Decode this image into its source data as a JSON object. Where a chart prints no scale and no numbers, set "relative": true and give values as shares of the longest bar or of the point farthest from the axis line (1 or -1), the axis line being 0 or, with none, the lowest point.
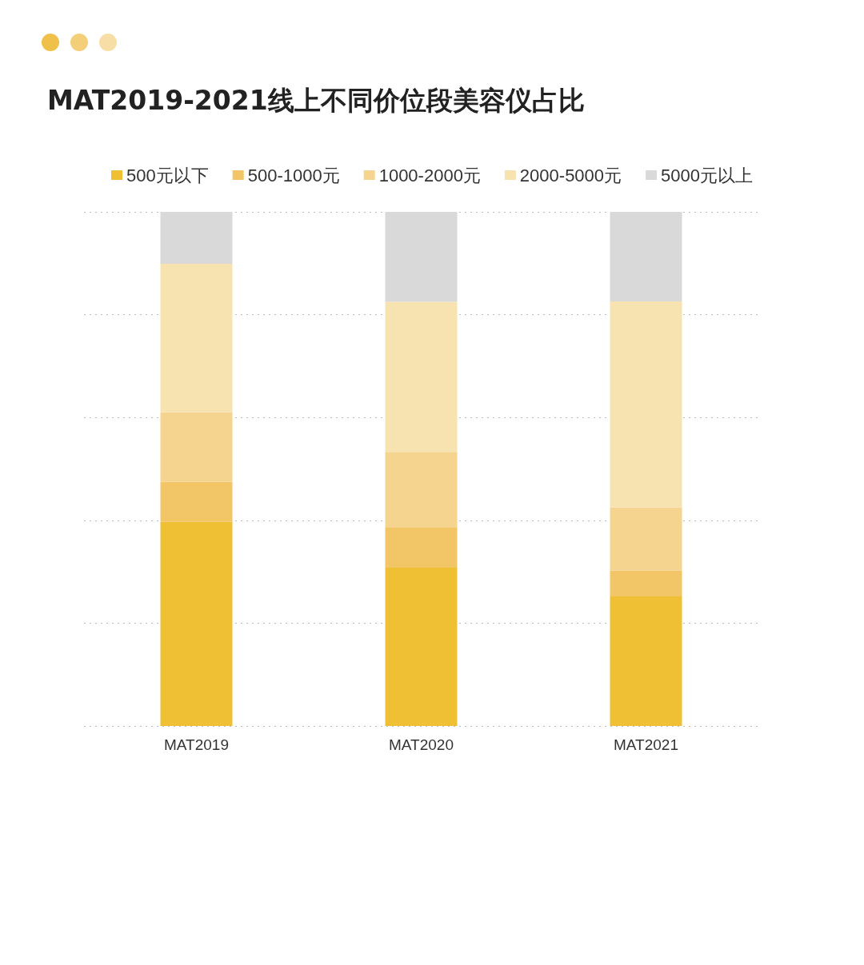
{
  "chart_data": {
    "type": "bar",
    "title": "MAT2019-2021线上不同价位段美容仪占比",
    "categories": [
      "MAT2019",
      "MAT2020",
      "MAT2021"
    ],
    "stacked": true,
    "relative": true,
    "grid": "y",
    "legend": "top",
    "series": [
      {
        "name": "500元以下",
        "color": "#efc033",
        "values": [
          0.397,
          0.308,
          0.252
        ]
      },
      {
        "name": "500-1000元",
        "color": "#f2c567",
        "values": [
          0.078,
          0.079,
          0.05
        ]
      },
      {
        "name": "1000-2000元",
        "color": "#f5d490",
        "values": [
          0.135,
          0.146,
          0.123
        ]
      },
      {
        "name": "2000-5000元",
        "color": "#f7e3b0",
        "values": [
          0.289,
          0.292,
          0.401
        ]
      },
      {
        "name": "5000元以上",
        "color": "#d9d9d9",
        "values": [
          0.101,
          0.175,
          0.174
        ]
      }
    ]
  }
}
